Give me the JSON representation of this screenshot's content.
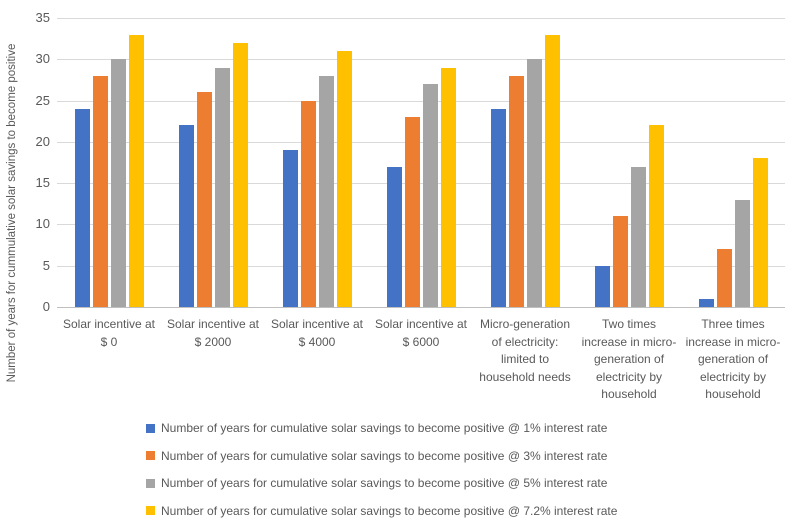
{
  "chart_data": {
    "type": "bar",
    "title": "",
    "ylabel": "Number of years for cummulative solar savings to become positive",
    "xlabel": "",
    "ylim": [
      0,
      35
    ],
    "yticks": [
      0,
      5,
      10,
      15,
      20,
      25,
      30,
      35
    ],
    "grid": true,
    "legend_position": "bottom-left",
    "categories": [
      [
        "Solar incentive at",
        "$ 0"
      ],
      [
        "Solar incentive at",
        "$ 2000"
      ],
      [
        "Solar incentive at",
        "$ 4000"
      ],
      [
        "Solar incentive at",
        "$ 6000"
      ],
      [
        "Micro-generation",
        "of electricity:",
        "limited to",
        "household needs"
      ],
      [
        "Two times",
        "increase in micro-",
        "generation of",
        "electricity by",
        "household"
      ],
      [
        "Three times",
        "increase in micro-",
        "generation of",
        "electricity by",
        "household"
      ]
    ],
    "series": [
      {
        "name": "Number of years for cumulative solar savings to become positive @ 1% interest rate",
        "color": "#4472C4",
        "values": [
          24,
          22,
          19,
          17,
          24,
          5,
          1
        ]
      },
      {
        "name": "Number of years for cumulative solar savings to become positive @ 3% interest rate",
        "color": "#ED7D31",
        "values": [
          28,
          26,
          25,
          23,
          28,
          11,
          7
        ]
      },
      {
        "name": "Number of years for cumulative solar savings to become positive @ 5% interest rate",
        "color": "#A5A5A5",
        "values": [
          30,
          29,
          28,
          27,
          30,
          17,
          13
        ]
      },
      {
        "name": "Number of years for cumulative solar savings to become positive @ 7.2% interest rate",
        "color": "#FFC000",
        "values": [
          33,
          32,
          31,
          29,
          33,
          22,
          18
        ]
      }
    ]
  }
}
